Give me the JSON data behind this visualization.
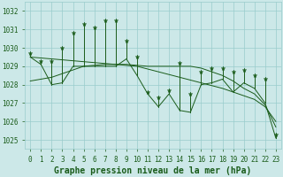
{
  "xlabel": "Graphe pression niveau de la mer (hPa)",
  "hours": [
    0,
    1,
    2,
    3,
    4,
    5,
    6,
    7,
    8,
    9,
    10,
    11,
    12,
    13,
    14,
    15,
    16,
    17,
    18,
    19,
    20,
    21,
    22,
    23
  ],
  "pressure_base": [
    1029.5,
    1029.1,
    1028.0,
    1028.1,
    1029.0,
    1029.0,
    1029.0,
    1029.0,
    1029.0,
    1029.4,
    1028.5,
    1027.5,
    1026.8,
    1027.5,
    1026.6,
    1026.5,
    1028.0,
    1028.1,
    1028.3,
    1027.6,
    1028.1,
    1027.8,
    1027.0,
    1025.1
  ],
  "spike_tops": [
    1029.7,
    1029.3,
    1029.3,
    1030.0,
    1030.8,
    1031.3,
    1031.1,
    1031.5,
    1031.5,
    1030.4,
    1029.5,
    1027.6,
    1027.3,
    1027.7,
    1029.2,
    1027.5,
    1028.7,
    1028.9,
    1028.9,
    1028.7,
    1028.8,
    1028.5,
    1028.3,
    1025.3
  ],
  "trend1": [
    1029.5,
    1029.45,
    1029.4,
    1029.35,
    1029.3,
    1029.25,
    1029.2,
    1029.15,
    1029.1,
    1029.05,
    1029.0,
    1028.85,
    1028.7,
    1028.55,
    1028.4,
    1028.25,
    1028.1,
    1027.95,
    1027.8,
    1027.6,
    1027.4,
    1027.2,
    1026.8,
    1026.0
  ],
  "trend2": [
    1028.2,
    1028.3,
    1028.4,
    1028.6,
    1028.8,
    1029.0,
    1029.05,
    1029.1,
    1029.1,
    1029.1,
    1029.05,
    1029.0,
    1029.0,
    1029.0,
    1029.0,
    1029.0,
    1028.9,
    1028.7,
    1028.5,
    1028.2,
    1027.8,
    1027.5,
    1026.9,
    1025.7
  ],
  "ylim": [
    1024.5,
    1032.5
  ],
  "xlim": [
    -0.5,
    23.5
  ],
  "bg_color": "#cce8e8",
  "grid_color": "#99cccc",
  "line_color": "#1a5c1a",
  "tick_fontsize": 5.5,
  "xlabel_fontsize": 7
}
